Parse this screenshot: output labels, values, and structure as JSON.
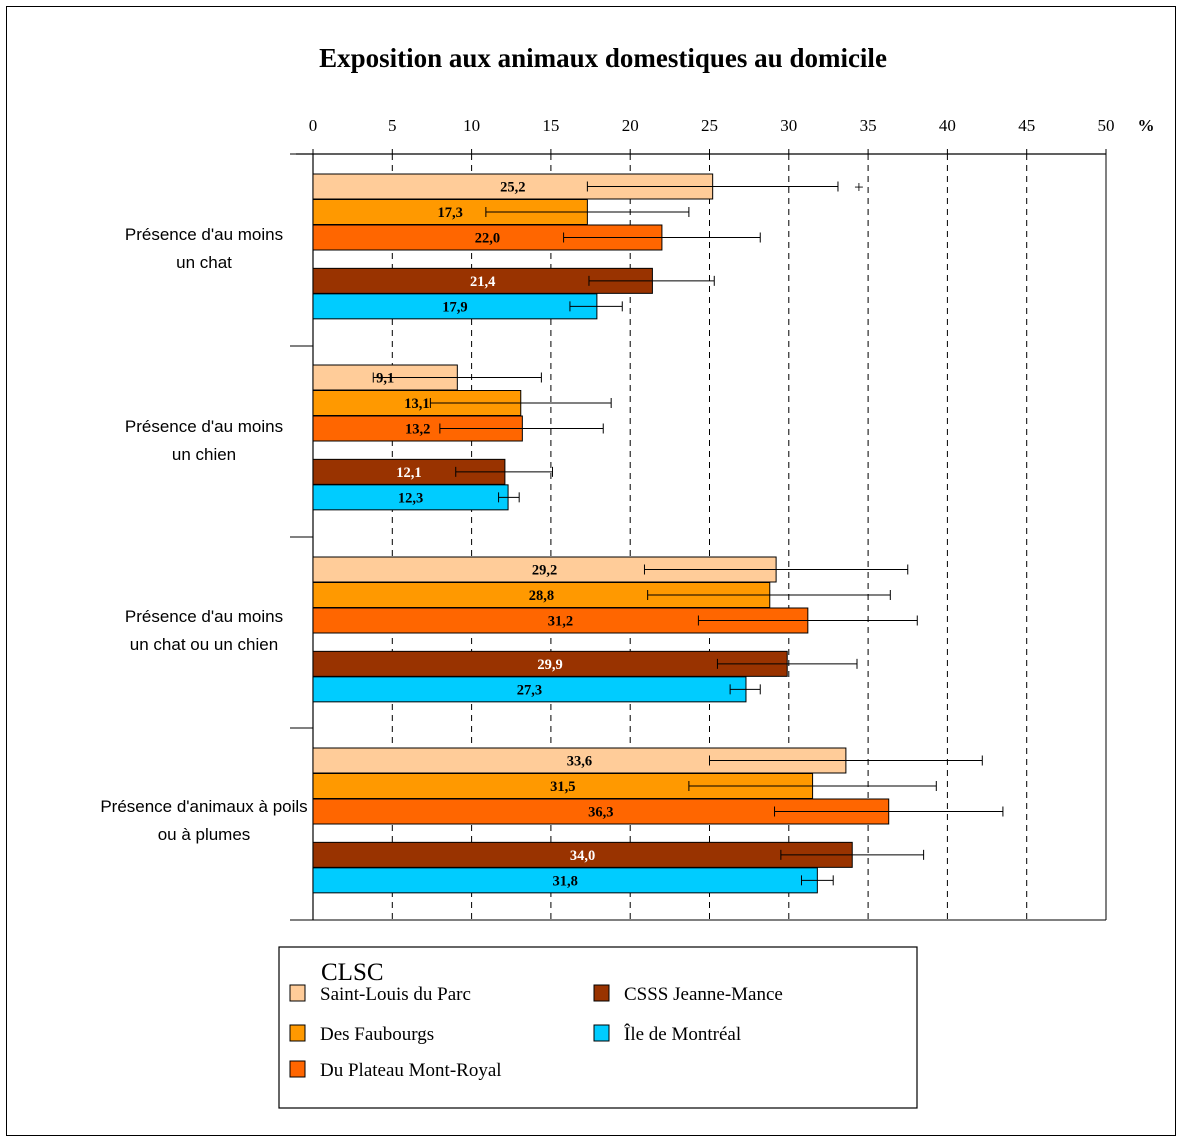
{
  "chart_data": {
    "type": "bar",
    "orientation": "horizontal",
    "title": "Exposition aux animaux domestiques au domicile",
    "xlabel": "%",
    "xlim": [
      0,
      50
    ],
    "xticks": [
      "0",
      "5",
      "10",
      "15",
      "20",
      "25",
      "30",
      "35",
      "40",
      "45",
      "50"
    ],
    "grid": "vertical dashed",
    "categories": [
      "Présence d'au moins un chat",
      "Présence d'au moins un chien",
      "Présence d'au moins un chat ou un chien",
      "Présence d'animaux à poils ou à plumes"
    ],
    "category_lines": [
      [
        "Présence d'au moins",
        "un chat"
      ],
      [
        "Présence d'au moins",
        "un chien"
      ],
      [
        "Présence d'au moins",
        "un chat ou un chien"
      ],
      [
        "Présence d'animaux à poils",
        "ou à plumes"
      ]
    ],
    "series": [
      {
        "name": "Saint-Louis du Parc",
        "color": "#FFCC99",
        "label_color": "#000000",
        "values": [
          25.2,
          9.1,
          29.2,
          33.6
        ],
        "labels": [
          "25,2",
          "9,1",
          "29,2",
          "33,6"
        ],
        "ci_low": [
          17.3,
          3.8,
          20.9,
          25.0
        ],
        "ci_high": [
          33.1,
          14.4,
          37.5,
          42.2
        ]
      },
      {
        "name": "Des Faubourgs",
        "color": "#FF9900",
        "label_color": "#000000",
        "values": [
          17.3,
          13.1,
          28.8,
          31.5
        ],
        "labels": [
          "17,3",
          "13,1",
          "28,8",
          "31,5"
        ],
        "ci_low": [
          10.9,
          7.4,
          21.1,
          23.7
        ],
        "ci_high": [
          23.7,
          18.8,
          36.4,
          39.3
        ]
      },
      {
        "name": "Du Plateau Mont-Royal",
        "color": "#FF6600",
        "label_color": "#000000",
        "values": [
          22.0,
          13.2,
          31.2,
          36.3
        ],
        "labels": [
          "22,0",
          "13,2",
          "31,2",
          "36,3"
        ],
        "ci_low": [
          15.8,
          8.0,
          24.3,
          29.1
        ],
        "ci_high": [
          28.2,
          18.3,
          38.1,
          43.5
        ]
      },
      {
        "name": "CSSS Jeanne-Mance",
        "color": "#993300",
        "label_color": "#FFFFFF",
        "values": [
          21.4,
          12.1,
          29.9,
          34.0
        ],
        "labels": [
          "21,4",
          "12,1",
          "29,9",
          "34,0"
        ],
        "ci_low": [
          17.4,
          9.0,
          25.5,
          29.5
        ],
        "ci_high": [
          25.3,
          15.1,
          34.3,
          38.5
        ]
      },
      {
        "name": "Île de Montréal",
        "color": "#00CCFF",
        "label_color": "#000000",
        "values": [
          17.9,
          12.3,
          27.3,
          31.8
        ],
        "labels": [
          "17,9",
          "12,3",
          "27,3",
          "31,8"
        ],
        "ci_low": [
          16.2,
          11.7,
          26.3,
          30.8
        ],
        "ci_high": [
          19.5,
          13.0,
          28.2,
          32.8
        ]
      }
    ],
    "annotations": [
      {
        "category": 0,
        "series": 0,
        "text": "+"
      }
    ],
    "legend": {
      "title": "CLSC",
      "placement": "bottom-center",
      "columns": [
        [
          "Saint-Louis du Parc",
          "Des Faubourgs",
          "Du Plateau Mont-Royal"
        ],
        [
          "CSSS Jeanne-Mance",
          "Île de Montréal"
        ]
      ]
    }
  }
}
